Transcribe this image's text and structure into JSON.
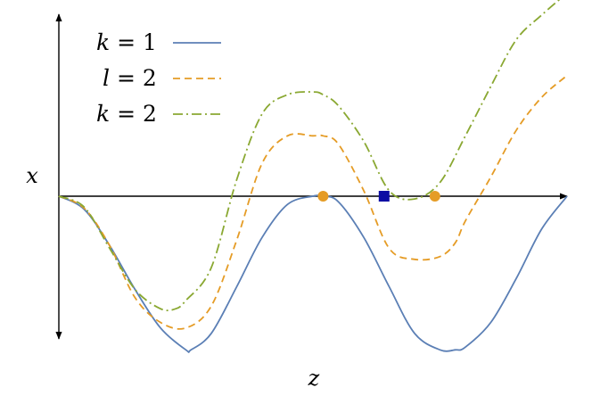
{
  "chart_data": {
    "type": "line",
    "xlabel": "z",
    "ylabel": "x",
    "xlim": [
      0,
      10
    ],
    "ylim": [
      -3.25,
      3.25
    ],
    "grid": false,
    "legend_position": "top-left",
    "legend": [
      {
        "var": "k",
        "value": "1",
        "style": "solid",
        "color": "#5b7fb5"
      },
      {
        "var": "l",
        "value": "2",
        "style": "dashed",
        "color": "#e59c26"
      },
      {
        "var": "k",
        "value": "2",
        "style": "dashdot",
        "color": "#8aa832"
      }
    ],
    "series": [
      {
        "name": "k = 1",
        "color": "#5b7fb5",
        "style": "solid",
        "x": [
          0,
          0.5,
          1,
          1.5,
          2,
          2.5,
          2.6,
          3,
          3.5,
          4,
          4.5,
          5,
          5.2,
          5.5,
          6,
          6.5,
          7,
          7.5,
          7.8,
          8,
          8.5,
          9,
          9.5,
          10
        ],
        "y": [
          0,
          -0.24,
          -0.9,
          -1.7,
          -2.4,
          -2.8,
          -2.8,
          -2.5,
          -1.65,
          -0.75,
          -0.15,
          0,
          0,
          -0.1,
          -0.75,
          -1.65,
          -2.5,
          -2.8,
          -2.8,
          -2.75,
          -2.3,
          -1.5,
          -0.6,
          0
        ]
      },
      {
        "name": "l = 2",
        "color": "#e59c26",
        "style": "dashed",
        "x": [
          0,
          0.5,
          1,
          1.5,
          2,
          2.5,
          3,
          3.5,
          4,
          4.5,
          5,
          5.2,
          5.5,
          6,
          6.5,
          7,
          7.5,
          7.8,
          8,
          8.5,
          9,
          9.5,
          10
        ],
        "y": [
          0,
          -0.22,
          -0.9,
          -1.85,
          -2.3,
          -2.4,
          -2.0,
          -0.8,
          0.6,
          1.1,
          1.1,
          1.1,
          0.95,
          0.1,
          -0.95,
          -1.15,
          -1.1,
          -0.85,
          -0.45,
          0.35,
          1.2,
          1.8,
          2.2
        ]
      },
      {
        "name": "k = 2",
        "color": "#8aa832",
        "style": "dashdot",
        "x": [
          0,
          0.5,
          1,
          1.5,
          2,
          2.3,
          2.5,
          3,
          3.5,
          4,
          4.5,
          5,
          5.2,
          5.5,
          6,
          6.5,
          7,
          7.5,
          8,
          8.5,
          9,
          9.5,
          10
        ],
        "y": [
          0,
          -0.2,
          -0.95,
          -1.7,
          -2.05,
          -2.05,
          -1.9,
          -1.3,
          0.3,
          1.5,
          1.85,
          1.9,
          1.85,
          1.65,
          1.0,
          0.1,
          -0.05,
          0.25,
          1.1,
          2.0,
          2.85,
          3.3,
          3.7
        ]
      }
    ],
    "markers": [
      {
        "shape": "circle",
        "color": "#e59c26",
        "x": 5.2,
        "y": 0
      },
      {
        "shape": "square",
        "color": "#0d0da3",
        "x": 6.4,
        "y": 0
      },
      {
        "shape": "circle",
        "color": "#e59c26",
        "x": 7.4,
        "y": 0
      }
    ]
  }
}
